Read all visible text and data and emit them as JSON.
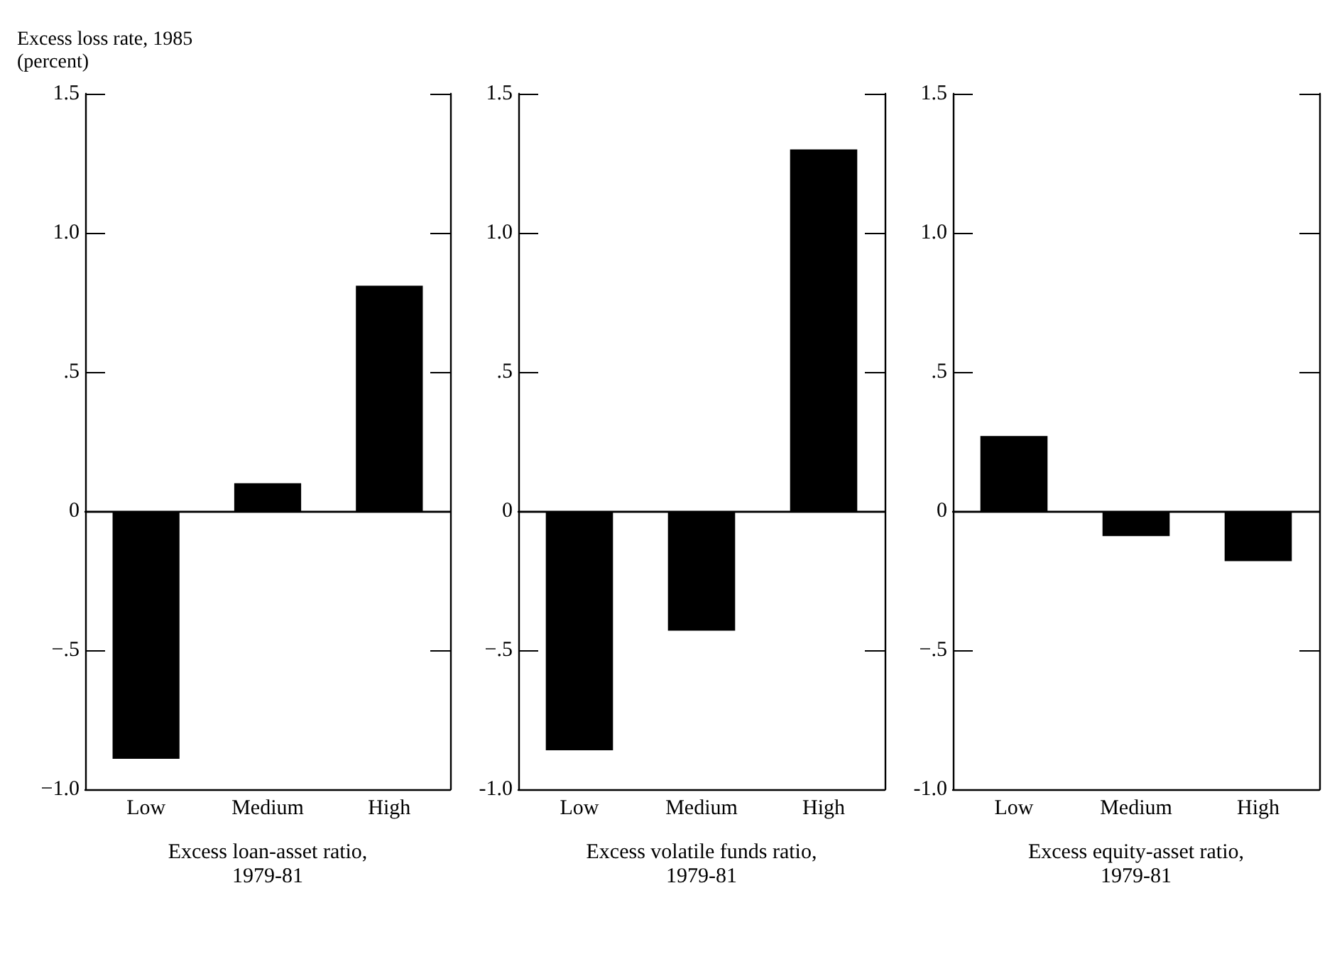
{
  "chart_data": [
    {
      "type": "bar",
      "ylabel": "Excess loss rate, 1985 (percent)",
      "xlabel": "Excess loan-asset ratio, 1979-81",
      "categories": [
        "Low",
        "Medium",
        "High"
      ],
      "values": [
        -0.89,
        0.1,
        0.81
      ],
      "color": "#000000",
      "ylim": [
        -1.0,
        1.5
      ],
      "yticks": [
        {
          "value": -1.0,
          "label": "−1.0"
        },
        {
          "value": -0.5,
          "label": "−.5"
        },
        {
          "value": 0,
          "label": "0"
        },
        {
          "value": 0.5,
          "label": ".5"
        },
        {
          "value": 1.0,
          "label": "1.0"
        },
        {
          "value": 1.5,
          "label": "1.5"
        }
      ]
    },
    {
      "type": "bar",
      "xlabel": "Excess volatile funds ratio, 1979-81",
      "categories": [
        "Low",
        "Medium",
        "High"
      ],
      "values": [
        -0.86,
        -0.43,
        1.3
      ],
      "color": "#000000",
      "ylim": [
        -1.0,
        1.5
      ],
      "yticks": [
        {
          "value": -1.0,
          "label": "-1.0"
        },
        {
          "value": -0.5,
          "label": "−.5"
        },
        {
          "value": 0,
          "label": "0"
        },
        {
          "value": 0.5,
          "label": ".5"
        },
        {
          "value": 1.0,
          "label": "1.0"
        },
        {
          "value": 1.5,
          "label": "1.5"
        }
      ]
    },
    {
      "type": "bar",
      "xlabel": "Excess equity-asset ratio, 1979-81",
      "categories": [
        "Low",
        "Medium",
        "High"
      ],
      "values": [
        0.27,
        -0.09,
        -0.18
      ],
      "color": "#000000",
      "ylim": [
        -1.0,
        1.5
      ],
      "yticks": [
        {
          "value": -1.0,
          "label": "-1.0"
        },
        {
          "value": -0.5,
          "label": "−.5"
        },
        {
          "value": 0,
          "label": "0"
        },
        {
          "value": 0.5,
          "label": ".5"
        },
        {
          "value": 1.0,
          "label": "1.0"
        },
        {
          "value": 1.5,
          "label": "1.5"
        }
      ]
    }
  ]
}
